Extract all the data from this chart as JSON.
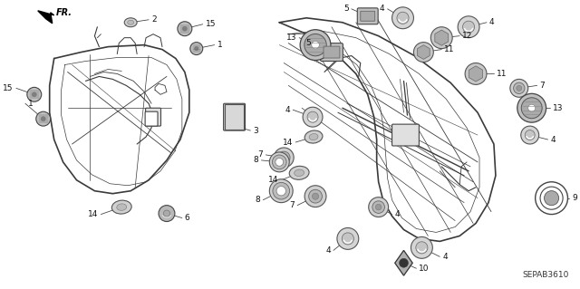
{
  "background_color": "#ffffff",
  "diagram_code": "SEPAB3610",
  "fig_width": 6.4,
  "fig_height": 3.19,
  "line_color": "#3a3a3a",
  "text_color": "#111111",
  "part_fill": "#d0d0d0",
  "part_edge": "#444444"
}
